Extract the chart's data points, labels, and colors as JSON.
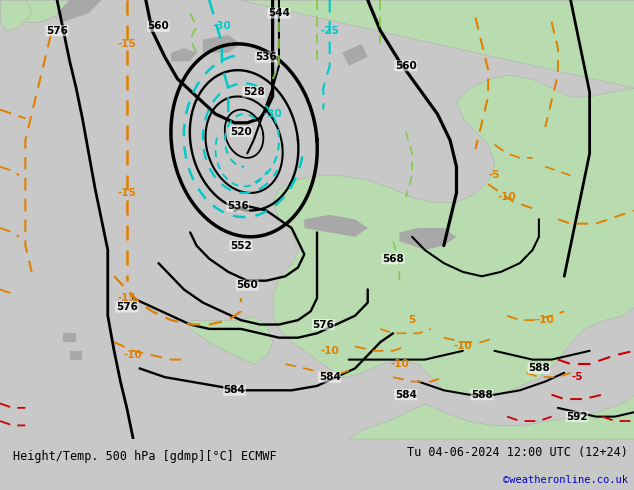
{
  "title_left": "Height/Temp. 500 hPa [gdmp][°C] ECMWF",
  "title_right": "Tu 04-06-2024 12:00 UTC (12+24)",
  "watermark": "©weatheronline.co.uk",
  "bg_color": "#c8c8c8",
  "land_color": "#b8dcb0",
  "mountain_color": "#a8a8a8",
  "sea_color": "#c8c8c8",
  "bottom_bar_color": "#ffffff",
  "black": "#000000",
  "cyan": "#00c8c8",
  "orange": "#e08000",
  "green": "#80c840",
  "red": "#cc0000",
  "blue": "#0000cc",
  "figsize": [
    6.34,
    4.9
  ],
  "dpi": 100
}
